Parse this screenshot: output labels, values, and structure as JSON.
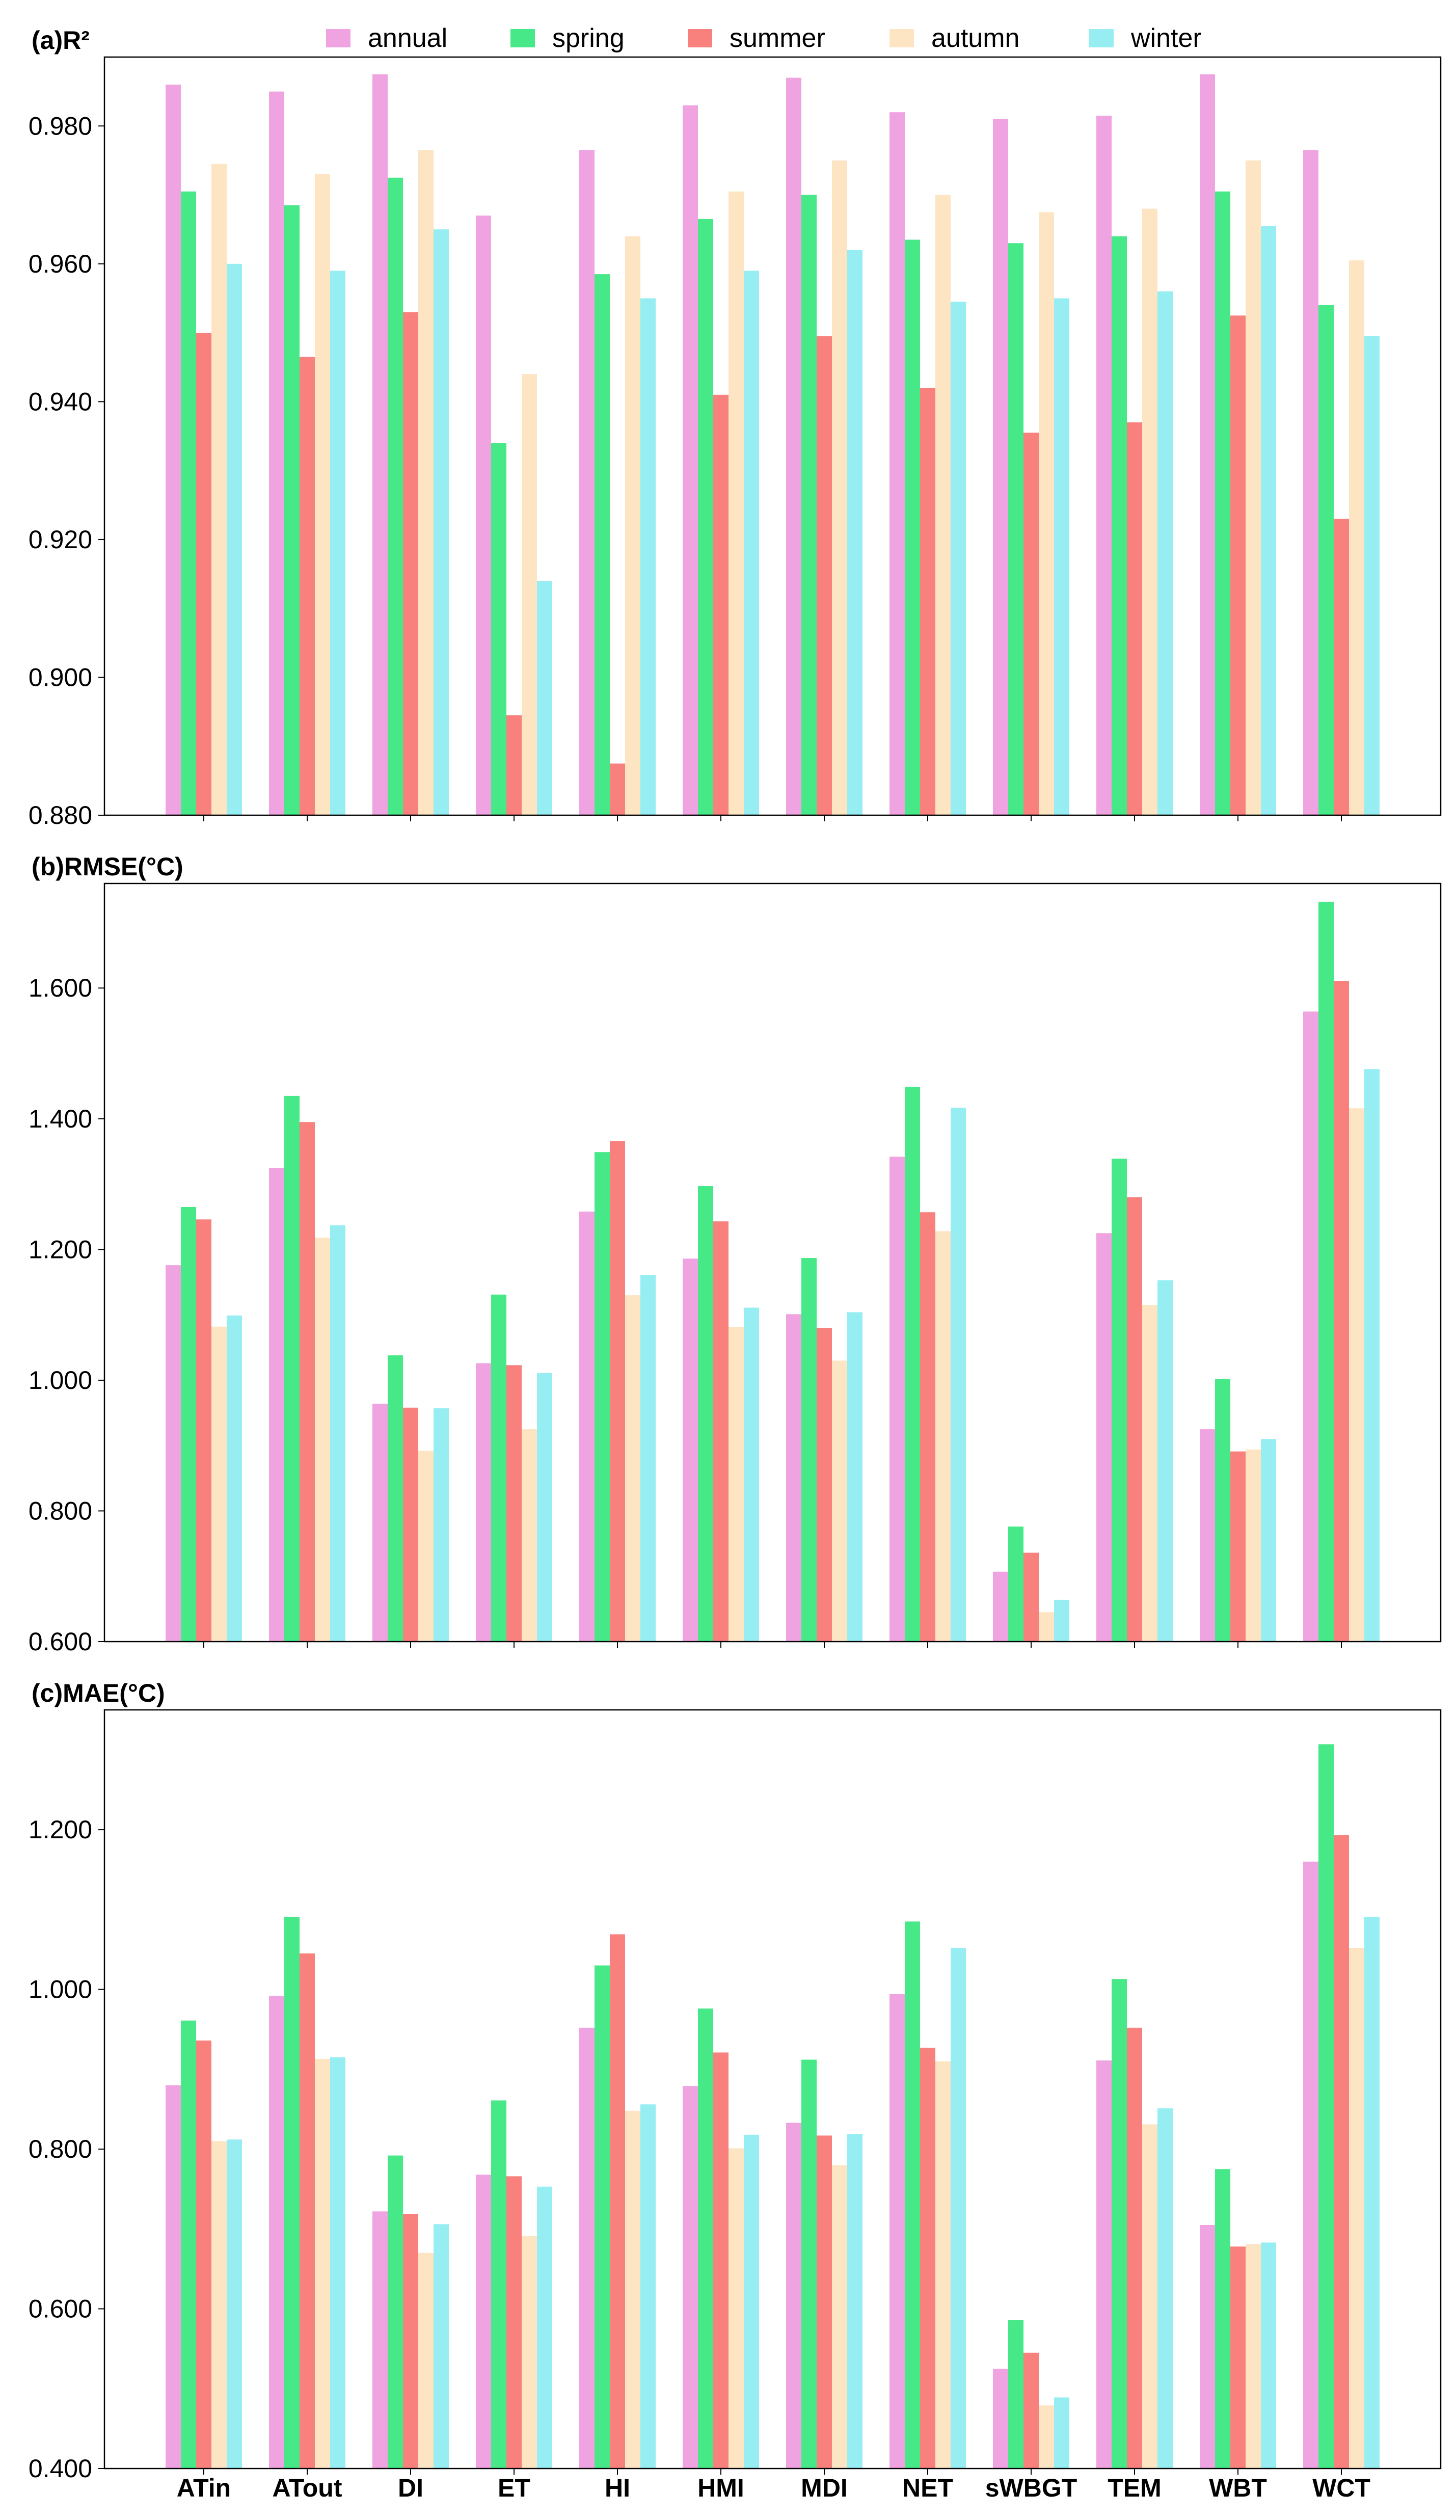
{
  "legend": {
    "placement": "top-center",
    "items": [
      {
        "label": "annual",
        "color": "#EFA3E0"
      },
      {
        "label": "spring",
        "color": "#46E887"
      },
      {
        "label": "summer",
        "color": "#F8817D"
      },
      {
        "label": "autumn",
        "color": "#FDE4C3"
      },
      {
        "label": "winter",
        "color": "#96EDF2"
      }
    ]
  },
  "chart_data": [
    {
      "type": "bar",
      "title": "(a)R²",
      "categories": [
        "ATin",
        "ATout",
        "DI",
        "ET",
        "HI",
        "HMI",
        "MDI",
        "NET",
        "sWBGT",
        "TEM",
        "WBT",
        "WCT"
      ],
      "ylim": [
        0.88,
        0.99
      ],
      "yticks": [
        "0.880",
        "0.900",
        "0.920",
        "0.940",
        "0.960",
        "0.980"
      ],
      "grid": false,
      "series": [
        {
          "name": "annual",
          "color": "#EFA3E0",
          "values": [
            0.986,
            0.985,
            0.9875,
            0.967,
            0.9765,
            0.983,
            0.987,
            0.982,
            0.981,
            0.9815,
            0.9875,
            0.9765
          ]
        },
        {
          "name": "spring",
          "color": "#46E887",
          "values": [
            0.9705,
            0.9685,
            0.9725,
            0.934,
            0.9585,
            0.9665,
            0.97,
            0.9635,
            0.963,
            0.964,
            0.9705,
            0.954
          ]
        },
        {
          "name": "summer",
          "color": "#F8817D",
          "values": [
            0.95,
            0.9465,
            0.953,
            0.8945,
            0.8875,
            0.941,
            0.9495,
            0.942,
            0.9355,
            0.937,
            0.9525,
            0.923
          ]
        },
        {
          "name": "autumn",
          "color": "#FDE4C3",
          "values": [
            0.9745,
            0.973,
            0.9765,
            0.944,
            0.964,
            0.9705,
            0.975,
            0.97,
            0.9675,
            0.968,
            0.975,
            0.9605
          ]
        },
        {
          "name": "winter",
          "color": "#96EDF2",
          "values": [
            0.96,
            0.959,
            0.965,
            0.914,
            0.955,
            0.959,
            0.962,
            0.9545,
            0.955,
            0.956,
            0.9655,
            0.9495
          ]
        }
      ]
    },
    {
      "type": "bar",
      "title": "(b)RMSE(°C)",
      "categories": [
        "ATin",
        "ATout",
        "DI",
        "ET",
        "HI",
        "HMI",
        "MDI",
        "NET",
        "sWBGT",
        "TEM",
        "WBT",
        "WCT"
      ],
      "ylim": [
        0.6,
        1.76
      ],
      "yticks": [
        "0.600",
        "0.800",
        "1.000",
        "1.200",
        "1.400",
        "1.600"
      ],
      "grid": false,
      "series": [
        {
          "name": "annual",
          "color": "#EFA3E0",
          "values": [
            1.176,
            1.325,
            0.964,
            1.026,
            1.258,
            1.186,
            1.101,
            1.342,
            0.707,
            1.225,
            0.925,
            1.564
          ]
        },
        {
          "name": "spring",
          "color": "#46E887",
          "values": [
            1.265,
            1.435,
            1.038,
            1.131,
            1.349,
            1.297,
            1.187,
            1.449,
            0.776,
            1.339,
            1.002,
            1.732
          ]
        },
        {
          "name": "summer",
          "color": "#F8817D",
          "values": [
            1.246,
            1.395,
            0.958,
            1.023,
            1.366,
            1.243,
            1.08,
            1.257,
            0.736,
            1.28,
            0.891,
            1.611
          ]
        },
        {
          "name": "autumn",
          "color": "#FDE4C3",
          "values": [
            1.082,
            1.218,
            0.892,
            0.925,
            1.13,
            1.081,
            1.03,
            1.228,
            0.645,
            1.115,
            0.894,
            1.416
          ]
        },
        {
          "name": "winter",
          "color": "#96EDF2",
          "values": [
            1.099,
            1.237,
            0.957,
            1.011,
            1.161,
            1.111,
            1.104,
            1.417,
            0.664,
            1.153,
            0.91,
            1.476
          ]
        }
      ]
    },
    {
      "type": "bar",
      "title": "(c)MAE(°C)",
      "categories": [
        "ATin",
        "ATout",
        "DI",
        "ET",
        "HI",
        "HMI",
        "MDI",
        "NET",
        "sWBGT",
        "TEM",
        "WBT",
        "WCT"
      ],
      "ylim": [
        0.4,
        1.35
      ],
      "yticks": [
        "0.400",
        "0.600",
        "0.800",
        "1.000",
        "1.200"
      ],
      "grid": false,
      "series": [
        {
          "name": "annual",
          "color": "#EFA3E0",
          "values": [
            0.88,
            0.992,
            0.722,
            0.768,
            0.952,
            0.879,
            0.833,
            0.994,
            0.525,
            0.911,
            0.705,
            1.16
          ]
        },
        {
          "name": "spring",
          "color": "#46E887",
          "values": [
            0.961,
            1.091,
            0.792,
            0.861,
            1.03,
            0.976,
            0.912,
            1.085,
            0.586,
            1.013,
            0.775,
            1.307
          ]
        },
        {
          "name": "summer",
          "color": "#F8817D",
          "values": [
            0.936,
            1.045,
            0.719,
            0.766,
            1.069,
            0.921,
            0.817,
            0.927,
            0.545,
            0.952,
            0.678,
            1.193
          ]
        },
        {
          "name": "autumn",
          "color": "#FDE4C3",
          "values": [
            0.81,
            0.913,
            0.67,
            0.691,
            0.848,
            0.801,
            0.78,
            0.91,
            0.479,
            0.831,
            0.681,
            1.052
          ]
        },
        {
          "name": "winter",
          "color": "#96EDF2",
          "values": [
            0.812,
            0.915,
            0.706,
            0.753,
            0.856,
            0.818,
            0.819,
            1.052,
            0.489,
            0.851,
            0.683,
            1.091
          ]
        }
      ]
    }
  ]
}
